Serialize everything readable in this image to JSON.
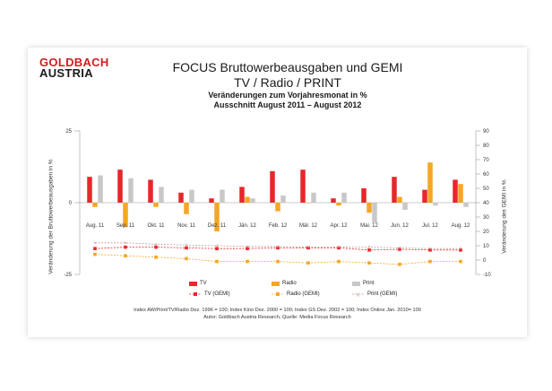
{
  "logo": {
    "line1": "GOLDBACH",
    "line2": "AUSTRIA"
  },
  "header": {
    "title": "FOCUS Bruttowerbeausgaben und GEMI",
    "subtitle": "TV / Radio / PRINT",
    "line3": "Veränderungen zum Vorjahresmonat in %",
    "line4": "Ausschnitt  August 2011 – August 2012"
  },
  "footnote": {
    "line1": "Index AW/Print/TV/Radio Dez. 1996 = 100; Index Kino Dez. 2000 = 100; Index GS Dez. 2002 = 100; Index Online Jän. 2010= 100",
    "line2": "Autor: Goldbach Austria Research, Quelle: Media Focus Research"
  },
  "colors": {
    "tv": "#e8262b",
    "radio": "#f5a623",
    "print": "#c8c8c8",
    "gemi_print": "#c99a9a"
  },
  "chart_data": {
    "type": "bar",
    "categories": [
      "Aug. 11",
      "Sep. 11",
      "Okt. 11",
      "Nov. 11",
      "Dez. 11",
      "Jän. 12",
      "Feb. 12",
      "Mär. 12",
      "Apr. 12",
      "Mai. 12",
      "Jun. 12",
      "Jul. 12",
      "Aug. 12"
    ],
    "series": [
      {
        "name": "TV",
        "axis": "left",
        "values": [
          9,
          11.5,
          8,
          3.5,
          1.5,
          5.5,
          11,
          11.5,
          1.5,
          5,
          9,
          4.5,
          8
        ]
      },
      {
        "name": "Radio",
        "axis": "left",
        "values": [
          -1.5,
          -8.5,
          -1.5,
          -4,
          -10,
          2,
          -3,
          0,
          -1,
          -3.5,
          2,
          14,
          6.5
        ]
      },
      {
        "name": "Print",
        "axis": "left",
        "values": [
          9.5,
          8.5,
          5.5,
          4.5,
          4.5,
          1.5,
          2.5,
          3.5,
          3.5,
          -7,
          -2.5,
          -1,
          -1.5
        ]
      },
      {
        "name": "TV (GEMI)",
        "axis": "right",
        "values": [
          8,
          9,
          9,
          8.5,
          8,
          8,
          8.5,
          8.5,
          8.5,
          7,
          7.5,
          7,
          7
        ]
      },
      {
        "name": "Radio (GEMI)",
        "axis": "right",
        "values": [
          4,
          3,
          2,
          1,
          -1,
          -1,
          -1,
          -2,
          -1,
          -2,
          -3,
          -1,
          -1
        ]
      },
      {
        "name": "Print (GEMI)",
        "axis": "right",
        "values": [
          12,
          12,
          11,
          10.5,
          10,
          9.5,
          9.5,
          9,
          9,
          9,
          8.5,
          8,
          8
        ]
      }
    ],
    "left_axis": {
      "label": "Veränderung der Bruttowerbeausgaben in %",
      "ylim": [
        -25,
        25
      ],
      "ticks": [
        "25",
        "0",
        "-25"
      ]
    },
    "right_axis": {
      "label": "Veränderung des GEMI in %",
      "ylim": [
        -10,
        90
      ],
      "ticks": [
        "90",
        "80",
        "70",
        "60",
        "50",
        "40",
        "30",
        "20",
        "10",
        "0",
        "-10"
      ]
    },
    "legend_placement": "bottom"
  }
}
